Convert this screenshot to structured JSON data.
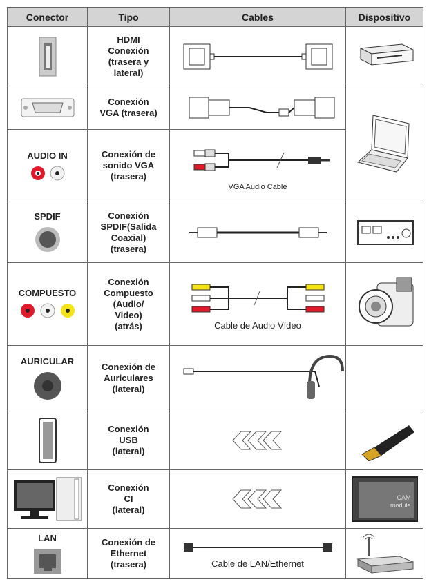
{
  "table": {
    "header": [
      "Conector",
      "Tipo",
      "Cables",
      "Dispositivo"
    ],
    "rows": [
      {
        "connector": null,
        "type": [
          "HDMI",
          "Conexión",
          "(trasera y",
          "lateral)"
        ],
        "cable": null
      },
      {
        "connector": null,
        "type": [
          "Conexión",
          "VGA (trasera)"
        ],
        "cable": null
      },
      {
        "connector": "AUDIO IN",
        "type": [
          "Conexión de",
          "sonido VGA",
          "(trasera)"
        ],
        "cable": "VGA Audio Cable"
      },
      {
        "connector": "SPDIF",
        "type": [
          "Conexión",
          "SPDIF(Salida",
          "Coaxial)",
          "(trasera)"
        ],
        "cable": null
      },
      {
        "connector": "COMPUESTO",
        "type": [
          "Conexión",
          "Compuesto",
          "(Audio/",
          "Video)",
          "(atrás)"
        ],
        "cable": "Cable de Audio Vídeo"
      },
      {
        "connector": "AURICULAR",
        "type": [
          "Conexión de",
          "Auriculares",
          "(lateral)"
        ],
        "cable": null
      },
      {
        "connector": null,
        "type": [
          "Conexión",
          "USB",
          "(lateral)"
        ],
        "cable": null
      },
      {
        "connector": null,
        "type": [
          "Conexión",
          "CI",
          "(lateral)"
        ],
        "cable": null
      },
      {
        "connector": "LAN",
        "type": [
          "Conexión de",
          "Ethernet",
          "(trasera)"
        ],
        "cable": "Cable de LAN/Ethernet"
      }
    ],
    "cam_label": [
      "CAM",
      "module"
    ]
  }
}
